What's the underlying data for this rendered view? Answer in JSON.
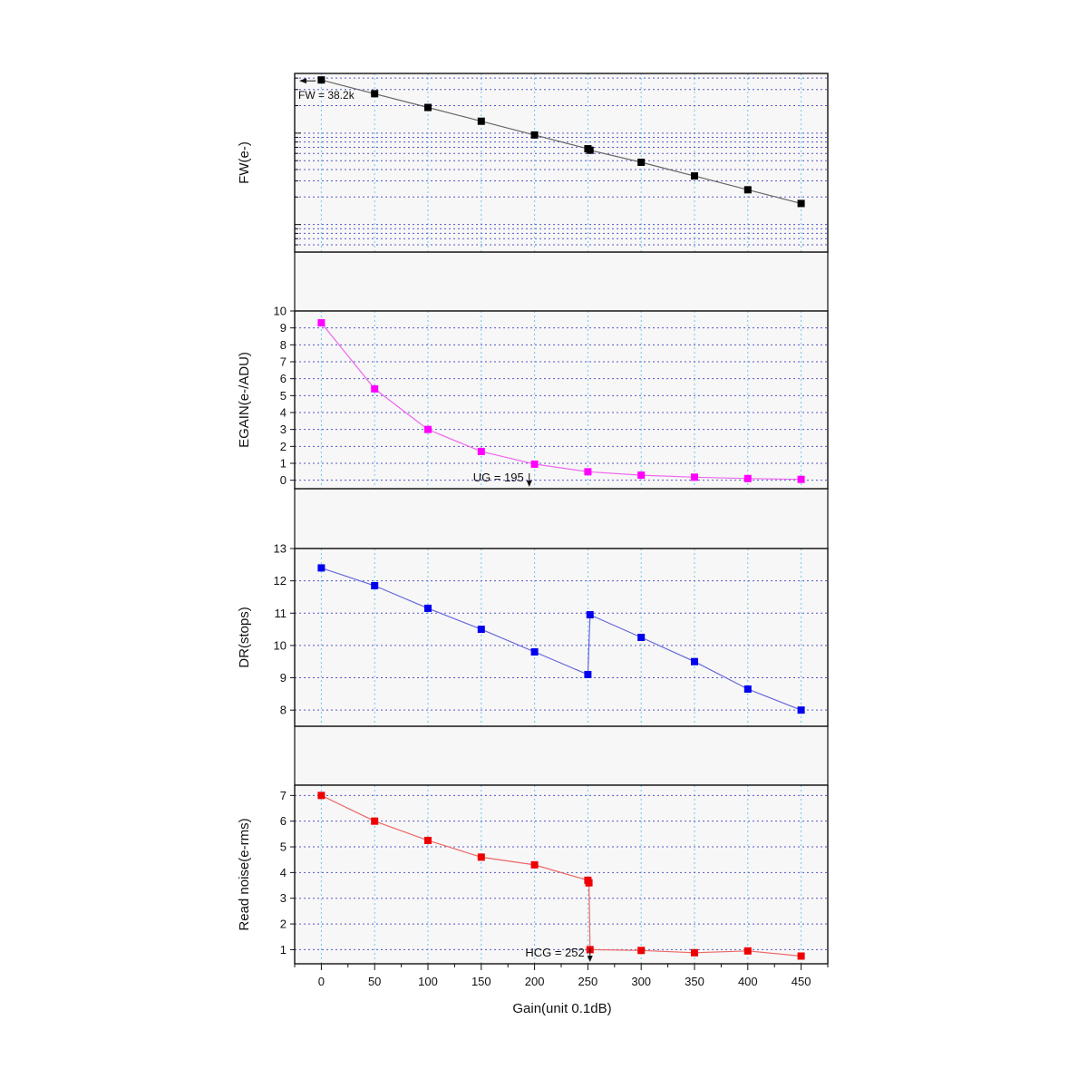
{
  "figure": {
    "xlabel": "Gain(unit 0.1dB)",
    "x_ticks": [
      0,
      50,
      100,
      150,
      200,
      250,
      300,
      350,
      400,
      450
    ],
    "xlim": [
      -25,
      475
    ]
  },
  "chart_data": [
    {
      "type": "line",
      "id": "fw",
      "ylabel": "FW(e-)",
      "color": "#000000",
      "line_color": "#666666",
      "log_scale": true,
      "ylim": [
        500,
        45000
      ],
      "y_ticks": [],
      "grid": true,
      "x": [
        0,
        50,
        100,
        150,
        200,
        250,
        252,
        300,
        350,
        400,
        450
      ],
      "y": [
        38200,
        27000,
        19100,
        13500,
        9550,
        6750,
        6500,
        4800,
        3400,
        2400,
        1700
      ],
      "annotation": {
        "text": "FW = 38.2k",
        "x": 0,
        "arrow": "left"
      }
    },
    {
      "type": "line",
      "id": "egain",
      "ylabel": "EGAIN(e-/ADU)",
      "color": "#ff00ff",
      "line_color": "#ee66ee",
      "log_scale": false,
      "ylim": [
        -0.5,
        10
      ],
      "y_ticks": [
        0,
        1,
        2,
        3,
        4,
        5,
        6,
        7,
        8,
        9,
        10
      ],
      "grid": true,
      "x": [
        0,
        50,
        100,
        150,
        200,
        250,
        300,
        350,
        400,
        450
      ],
      "y": [
        9.3,
        5.4,
        3.0,
        1.7,
        0.95,
        0.5,
        0.3,
        0.18,
        0.1,
        0.05
      ],
      "annotation": {
        "text": "UG = 195",
        "x": 195,
        "arrow": "down"
      }
    },
    {
      "type": "line",
      "id": "dr",
      "ylabel": "DR(stops)",
      "color": "#0000ee",
      "line_color": "#6666dd",
      "log_scale": false,
      "ylim": [
        7.5,
        13
      ],
      "y_ticks": [
        8,
        9,
        10,
        11,
        12,
        13
      ],
      "grid": true,
      "x": [
        0,
        50,
        100,
        150,
        200,
        250,
        252,
        300,
        350,
        400,
        450
      ],
      "y": [
        12.4,
        11.85,
        11.15,
        10.5,
        9.8,
        9.1,
        10.95,
        10.25,
        9.5,
        8.65,
        8.0
      ]
    },
    {
      "type": "line",
      "id": "read_noise",
      "ylabel": "Read noise(e-rms)",
      "color": "#ee0000",
      "line_color": "#ee6666",
      "log_scale": false,
      "ylim": [
        0.45,
        7.4
      ],
      "y_ticks": [
        1,
        2,
        3,
        4,
        5,
        6,
        7
      ],
      "grid": true,
      "x": [
        0,
        50,
        100,
        150,
        200,
        250,
        251,
        252,
        300,
        350,
        400,
        450
      ],
      "y": [
        7.0,
        6.0,
        5.25,
        4.6,
        4.3,
        3.7,
        3.6,
        1.0,
        0.97,
        0.88,
        0.95,
        0.75
      ],
      "annotation": {
        "text": "HCG = 252",
        "x": 252,
        "arrow": "down"
      }
    }
  ]
}
